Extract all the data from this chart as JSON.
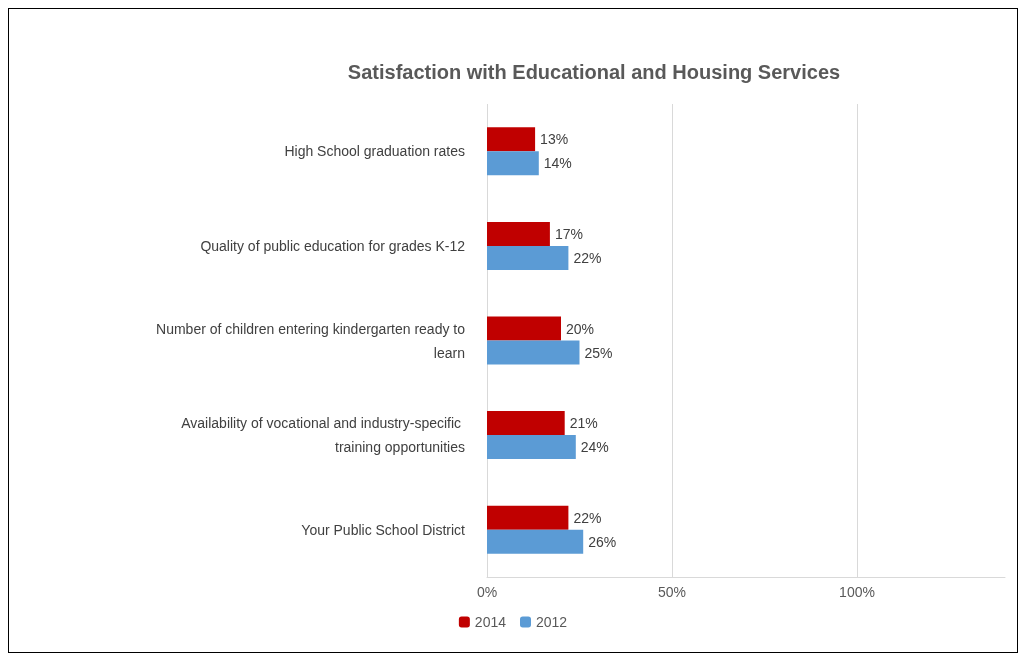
{
  "chart_data": {
    "type": "bar",
    "orientation": "horizontal",
    "title": "Satisfaction with Educational and Housing Services",
    "categories": [
      "High School graduation rates",
      "Quality of public education for grades K-12",
      "Number of children entering kindergarten ready to learn",
      "Availability of vocational and industry-specific training opportunities",
      "Your Public School District"
    ],
    "series": [
      {
        "name": "2014",
        "color": "#c00000",
        "values": [
          13,
          17,
          20,
          21,
          22
        ],
        "value_labels": [
          "13%",
          "17%",
          "20%",
          "21%",
          "22%"
        ]
      },
      {
        "name": "2012",
        "color": "#5b9bd5",
        "values": [
          14,
          22,
          25,
          24,
          26
        ],
        "value_labels": [
          "14%",
          "22%",
          "25%",
          "24%",
          "26%"
        ]
      }
    ],
    "xlim": [
      0,
      140
    ],
    "xticks": [
      {
        "value": 0,
        "label": "0%"
      },
      {
        "value": 50,
        "label": "50%"
      },
      {
        "value": 100,
        "label": "100%"
      }
    ],
    "grid": "x",
    "legend": "bottom"
  }
}
